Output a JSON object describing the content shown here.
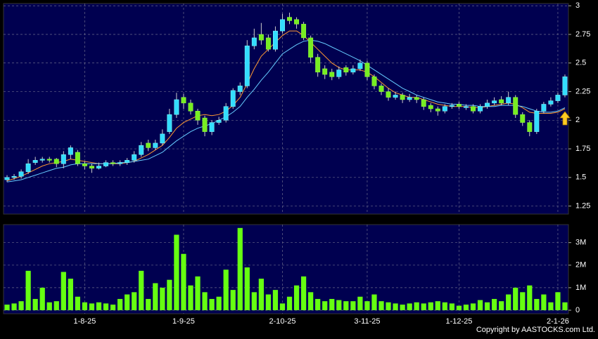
{
  "chart_data": [
    {
      "type": "candlestick",
      "open": [
        1.48,
        1.5,
        1.51,
        1.55,
        1.63,
        1.65,
        1.66,
        1.66,
        1.62,
        1.7,
        1.72,
        1.62,
        1.6,
        1.58,
        1.6,
        1.63,
        1.62,
        1.63,
        1.65,
        1.7,
        1.8,
        1.76,
        1.8,
        1.9,
        2.05,
        2.2,
        2.15,
        2.08,
        2.02,
        1.9,
        1.98,
        2.0,
        2.12,
        2.25,
        2.3,
        2.65,
        2.75,
        2.72,
        2.62,
        2.78,
        2.9,
        2.88,
        2.84,
        2.72,
        2.55,
        2.45,
        2.42,
        2.38,
        2.46,
        2.42,
        2.45,
        2.5,
        2.38,
        2.3,
        2.25,
        2.2,
        2.22,
        2.18,
        2.2,
        2.18,
        2.13,
        2.1,
        2.08,
        2.12,
        2.14,
        2.11,
        2.12,
        2.08,
        2.12,
        2.15,
        2.18,
        2.15,
        2.2,
        2.05,
        1.98,
        1.9,
        2.08,
        2.14,
        2.17,
        2.22
      ],
      "high": [
        1.52,
        1.53,
        1.57,
        1.66,
        1.68,
        1.68,
        1.68,
        1.67,
        1.73,
        1.78,
        1.74,
        1.64,
        1.62,
        1.63,
        1.65,
        1.65,
        1.65,
        1.67,
        1.73,
        1.81,
        1.83,
        1.83,
        1.92,
        2.1,
        2.24,
        2.23,
        2.18,
        2.1,
        2.04,
        2.0,
        2.03,
        2.15,
        2.28,
        2.33,
        2.7,
        2.8,
        2.85,
        2.75,
        2.82,
        2.93,
        2.94,
        2.9,
        2.86,
        2.74,
        2.58,
        2.48,
        2.45,
        2.47,
        2.48,
        2.48,
        2.53,
        2.52,
        2.4,
        2.32,
        2.28,
        2.25,
        2.24,
        2.23,
        2.22,
        2.2,
        2.15,
        2.12,
        2.14,
        2.15,
        2.16,
        2.14,
        2.14,
        2.14,
        2.18,
        2.2,
        2.21,
        2.25,
        2.22,
        2.07,
        2.0,
        2.1,
        2.16,
        2.2,
        2.24,
        2.4
      ],
      "low": [
        1.46,
        1.48,
        1.49,
        1.53,
        1.61,
        1.63,
        1.63,
        1.59,
        1.58,
        1.66,
        1.6,
        1.57,
        1.54,
        1.57,
        1.59,
        1.6,
        1.6,
        1.61,
        1.63,
        1.68,
        1.73,
        1.74,
        1.78,
        1.88,
        2.02,
        2.1,
        2.05,
        1.96,
        1.86,
        1.87,
        1.96,
        1.98,
        2.1,
        2.22,
        2.28,
        2.62,
        2.66,
        2.6,
        2.6,
        2.76,
        2.84,
        2.8,
        2.7,
        2.5,
        2.38,
        2.36,
        2.35,
        2.36,
        2.39,
        2.4,
        2.43,
        2.35,
        2.27,
        2.22,
        2.17,
        2.18,
        2.15,
        2.16,
        2.15,
        2.09,
        2.07,
        2.04,
        2.06,
        2.1,
        2.1,
        2.09,
        2.06,
        2.06,
        2.1,
        2.13,
        2.13,
        2.13,
        2.02,
        1.95,
        1.86,
        1.88,
        2.06,
        2.12,
        2.15,
        2.2
      ],
      "close": [
        1.5,
        1.51,
        1.55,
        1.62,
        1.65,
        1.66,
        1.65,
        1.62,
        1.7,
        1.76,
        1.62,
        1.6,
        1.58,
        1.6,
        1.63,
        1.62,
        1.63,
        1.65,
        1.7,
        1.78,
        1.76,
        1.8,
        1.88,
        2.05,
        2.18,
        2.15,
        2.08,
        2.0,
        1.9,
        1.98,
        2.0,
        2.12,
        2.26,
        2.3,
        2.65,
        2.72,
        2.7,
        2.62,
        2.78,
        2.88,
        2.87,
        2.84,
        2.72,
        2.55,
        2.42,
        2.4,
        2.38,
        2.44,
        2.42,
        2.45,
        2.5,
        2.38,
        2.3,
        2.25,
        2.2,
        2.22,
        2.18,
        2.2,
        2.18,
        2.12,
        2.1,
        2.08,
        2.12,
        2.13,
        2.12,
        2.12,
        2.08,
        2.12,
        2.15,
        2.17,
        2.15,
        2.2,
        2.05,
        1.98,
        1.9,
        2.08,
        2.14,
        2.17,
        2.22,
        2.38
      ],
      "up_color": "#33ddff",
      "down_color": "#77ee22",
      "lines": [
        {
          "color": "#ff9933",
          "values": [
            1.47,
            1.49,
            1.51,
            1.54,
            1.57,
            1.6,
            1.62,
            1.63,
            1.64,
            1.66,
            1.65,
            1.64,
            1.63,
            1.62,
            1.62,
            1.62,
            1.62,
            1.63,
            1.64,
            1.67,
            1.7,
            1.74,
            1.78,
            1.85,
            1.93,
            1.98,
            2.01,
            2.04,
            2.05,
            2.04,
            2.05,
            2.08,
            2.13,
            2.2,
            2.32,
            2.45,
            2.56,
            2.62,
            2.68,
            2.74,
            2.78,
            2.78,
            2.74,
            2.68,
            2.62,
            2.56,
            2.5,
            2.46,
            2.44,
            2.44,
            2.44,
            2.42,
            2.38,
            2.33,
            2.28,
            2.24,
            2.22,
            2.2,
            2.2,
            2.18,
            2.16,
            2.14,
            2.13,
            2.12,
            2.12,
            2.12,
            2.11,
            2.11,
            2.12,
            2.13,
            2.14,
            2.15,
            2.14,
            2.11,
            2.07,
            2.06,
            2.06,
            2.06,
            2.07,
            2.1
          ]
        },
        {
          "color": "#66ccff",
          "values": [
            1.46,
            1.47,
            1.48,
            1.5,
            1.52,
            1.54,
            1.56,
            1.58,
            1.59,
            1.61,
            1.62,
            1.62,
            1.62,
            1.62,
            1.62,
            1.62,
            1.63,
            1.63,
            1.64,
            1.65,
            1.66,
            1.69,
            1.72,
            1.77,
            1.82,
            1.86,
            1.9,
            1.93,
            1.95,
            1.97,
            2.0,
            2.03,
            2.07,
            2.12,
            2.2,
            2.27,
            2.35,
            2.42,
            2.5,
            2.58,
            2.62,
            2.66,
            2.69,
            2.7,
            2.69,
            2.67,
            2.64,
            2.61,
            2.58,
            2.55,
            2.52,
            2.48,
            2.44,
            2.4,
            2.36,
            2.32,
            2.28,
            2.25,
            2.22,
            2.2,
            2.18,
            2.16,
            2.15,
            2.14,
            2.14,
            2.13,
            2.13,
            2.12,
            2.12,
            2.12,
            2.13,
            2.13,
            2.13,
            2.12,
            2.1,
            2.08,
            2.07,
            2.07,
            2.08,
            2.11
          ]
        }
      ],
      "ylim": [
        1.18,
        3.02
      ],
      "yticks": [
        1.25,
        1.5,
        1.75,
        2,
        2.25,
        2.5,
        2.75,
        3
      ],
      "grid": true
    },
    {
      "type": "bar",
      "categories": [
        null,
        null,
        null,
        null,
        null,
        null,
        null,
        null,
        null,
        null,
        null,
        "1-8-25",
        null,
        null,
        null,
        null,
        null,
        null,
        null,
        null,
        null,
        null,
        null,
        null,
        null,
        "1-9-25",
        null,
        null,
        null,
        null,
        null,
        null,
        null,
        null,
        null,
        null,
        null,
        null,
        null,
        "2-10-25",
        null,
        null,
        null,
        null,
        null,
        null,
        null,
        null,
        null,
        null,
        null,
        "3-11-25",
        null,
        null,
        null,
        null,
        null,
        null,
        null,
        null,
        null,
        null,
        null,
        null,
        "1-12-25",
        null,
        null,
        null,
        null,
        null,
        null,
        null,
        null,
        null,
        null,
        null,
        null,
        null,
        "2-1-26",
        null
      ],
      "values": [
        250000,
        300000,
        400000,
        1750000,
        500000,
        1000000,
        350000,
        400000,
        1700000,
        1400000,
        600000,
        350000,
        300000,
        350000,
        300000,
        250000,
        500000,
        700000,
        800000,
        1750000,
        500000,
        1200000,
        1000000,
        1350000,
        3350000,
        2500000,
        1100000,
        1500000,
        800000,
        500000,
        600000,
        1800000,
        900000,
        3650000,
        1900000,
        800000,
        1400000,
        700000,
        900000,
        300000,
        600000,
        1100000,
        1500000,
        800000,
        500000,
        400000,
        500000,
        450000,
        400000,
        400000,
        600000,
        400000,
        700000,
        400000,
        350000,
        300000,
        250000,
        300000,
        350000,
        300000,
        350000,
        400000,
        350000,
        300000,
        200000,
        250000,
        300000,
        450000,
        350000,
        500000,
        400000,
        700000,
        1000000,
        800000,
        1100000,
        500000,
        700000,
        350000,
        800000,
        350000
      ],
      "color": "#66ff11",
      "ylim": [
        0,
        3800000
      ],
      "yticks": [
        0,
        {
          "value": 1000000,
          "label": "1M"
        },
        {
          "value": 2000000,
          "label": "2M"
        },
        {
          "value": 3000000,
          "label": "3M"
        }
      ],
      "grid": true
    }
  ],
  "copyright": "Copyright by AASTOCKS.com Ltd."
}
